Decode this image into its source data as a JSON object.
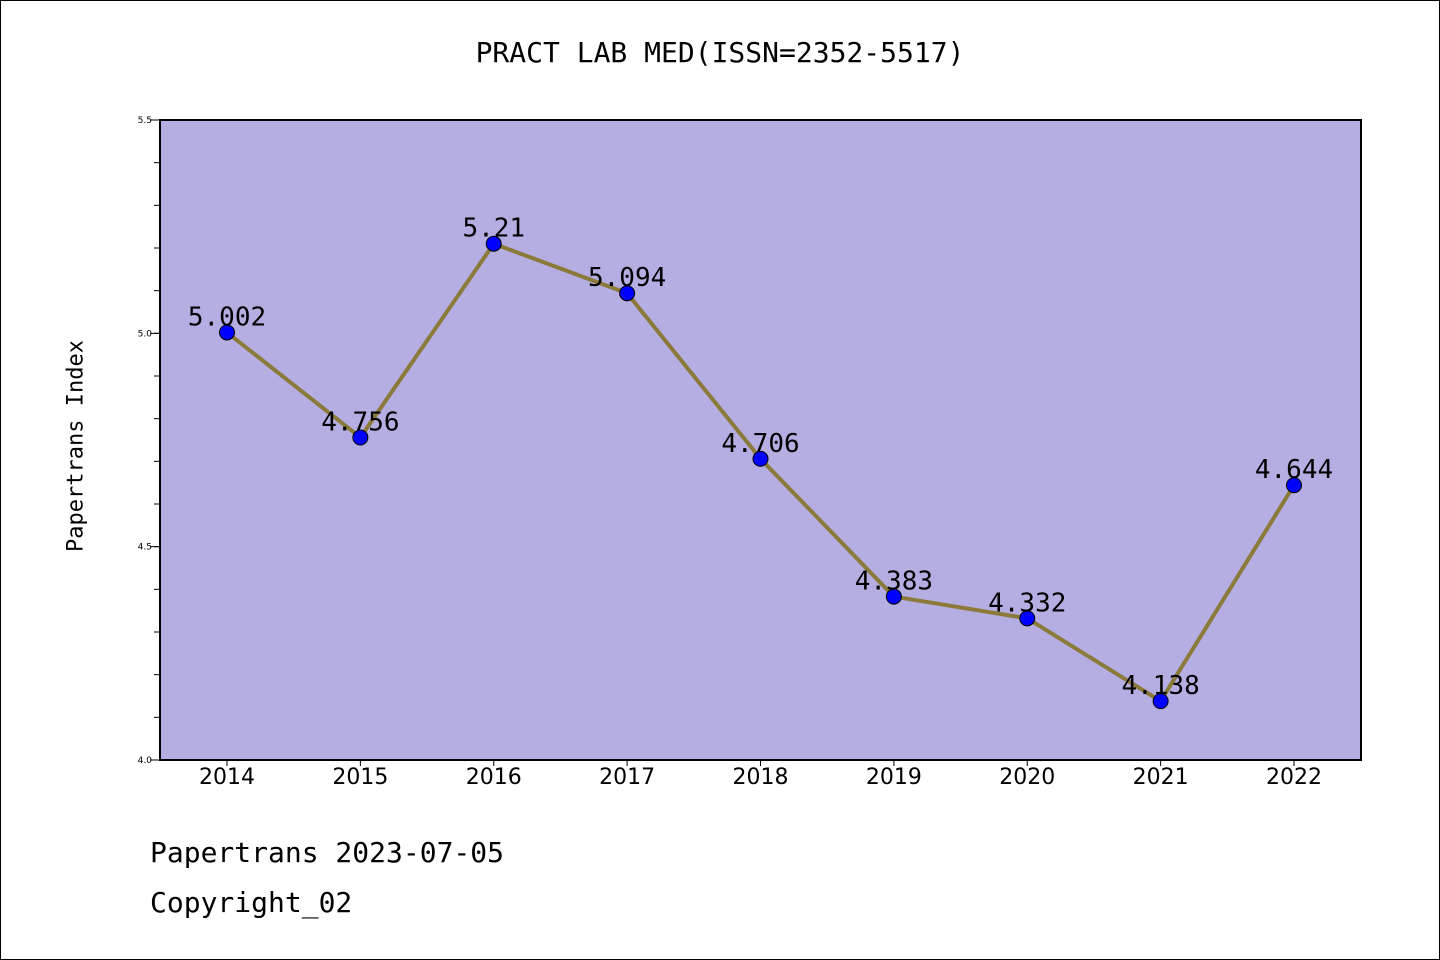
{
  "chart_data": {
    "type": "line",
    "title": "PRACT LAB MED(ISSN=2352-5517)",
    "xlabel": "",
    "ylabel": "Papertrans Index",
    "categories": [
      "2014",
      "2015",
      "2016",
      "2017",
      "2018",
      "2019",
      "2020",
      "2021",
      "2022"
    ],
    "series": [
      {
        "values": [
          5.002,
          4.756,
          5.21,
          5.094,
          4.706,
          4.383,
          4.332,
          4.138,
          4.644
        ],
        "labels": [
          "5.002",
          "4.756",
          "5.21",
          "5.094",
          "4.706",
          "4.383",
          "4.332",
          "4.138",
          "4.644"
        ]
      }
    ],
    "ylim": [
      4.0,
      5.5
    ],
    "yticks": [
      4.0,
      4.5,
      5.0,
      5.5
    ],
    "ytick_labels": [
      "4.0",
      "4.5",
      "5.0",
      "5.5"
    ],
    "grid": false,
    "legend": "none",
    "colors": {
      "plot_background": "#b4aee2",
      "line": "#8b7a3a",
      "marker": "#0000ff"
    }
  },
  "footer": {
    "date_line": "Papertrans 2023-07-05",
    "copyright_line": "Copyright_02"
  }
}
